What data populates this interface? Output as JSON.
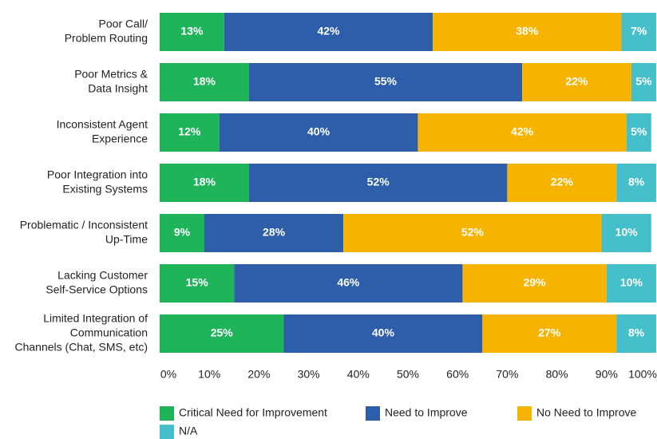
{
  "chart_data": {
    "type": "stacked_barh",
    "categories": [
      [
        "Poor Call/",
        "Problem Routing"
      ],
      [
        "Poor Metrics &",
        "Data Insight"
      ],
      [
        "Inconsistent Agent",
        "Experience"
      ],
      [
        "Poor Integration into",
        "Existing Systems"
      ],
      [
        "Problematic / Inconsistent",
        "Up-Time"
      ],
      [
        "Lacking Customer",
        "Self-Service Options"
      ],
      [
        "Limited Integration of",
        "Communication",
        "Channels (Chat, SMS, etc)"
      ]
    ],
    "series": [
      {
        "name": "Critical Need for Improvement",
        "color": "#1fb45a",
        "values": [
          13,
          18,
          12,
          18,
          9,
          15,
          25
        ],
        "value_labels": [
          "13%",
          "18%",
          "12%",
          "18%",
          "9%",
          "15%",
          "25%"
        ]
      },
      {
        "name": "Need to Improve",
        "color": "#2e5ea9",
        "values": [
          42,
          55,
          40,
          52,
          28,
          46,
          40
        ],
        "value_labels": [
          "42%",
          "55%",
          "40%",
          "52%",
          "28%",
          "46%",
          "40%"
        ]
      },
      {
        "name": "No Need to Improve",
        "color": "#f6b300",
        "values": [
          38,
          22,
          42,
          22,
          52,
          29,
          27
        ],
        "value_labels": [
          "38%",
          "22%",
          "42%",
          "22%",
          "52%",
          "29%",
          "27%"
        ]
      },
      {
        "name": "N/A",
        "color": "#45bfca",
        "values": [
          7,
          5,
          5,
          8,
          10,
          10,
          8
        ],
        "value_labels": [
          "7%",
          "5%",
          "5%",
          "8%",
          "10%",
          "10%",
          "8%"
        ]
      }
    ],
    "xlim": [
      0,
      100
    ],
    "xticks": [
      {
        "value": 0,
        "label": "0%"
      },
      {
        "value": 10,
        "label": "10%"
      },
      {
        "value": 20,
        "label": "20%"
      },
      {
        "value": 30,
        "label": "30%"
      },
      {
        "value": 40,
        "label": "40%"
      },
      {
        "value": 50,
        "label": "50%"
      },
      {
        "value": 60,
        "label": "60%"
      },
      {
        "value": 70,
        "label": "70%"
      },
      {
        "value": 80,
        "label": "80%"
      },
      {
        "value": 90,
        "label": "90%"
      },
      {
        "value": 100,
        "label": "100%"
      }
    ]
  }
}
